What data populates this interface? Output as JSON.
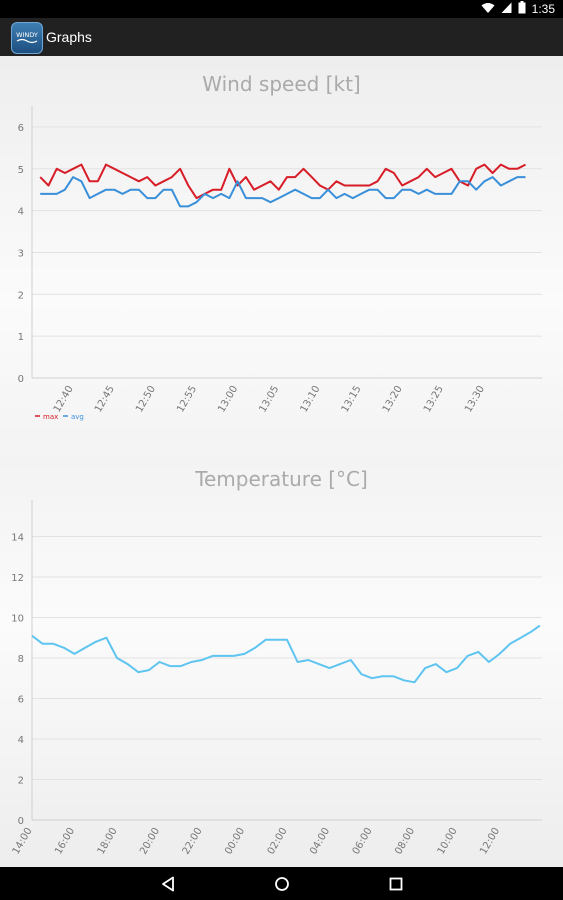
{
  "status_bar": {
    "time": "1:35",
    "icons": [
      "wifi-icon",
      "cellular-icon",
      "battery-icon"
    ]
  },
  "app_bar": {
    "icon_text": "WINDY",
    "title": "Graphs"
  },
  "navigation": {
    "icons": [
      "back-icon",
      "home-icon",
      "recents-icon"
    ]
  },
  "chart_data": [
    {
      "type": "line",
      "title": "Wind speed  [kt]",
      "xlabel": "",
      "ylabel": "",
      "ylim": [
        0,
        6.5
      ],
      "yticks": [
        0,
        1,
        2,
        3,
        4,
        5,
        6
      ],
      "grid": true,
      "legend_placement": "bottom-left",
      "x_start_min": 756,
      "x_ticks": [
        "12:40",
        "12:45",
        "12:50",
        "12:55",
        "13:00",
        "13:05",
        "13:10",
        "13:15",
        "13:20",
        "13:25",
        "13:30"
      ],
      "x": [
        756,
        757,
        758,
        759,
        760,
        761,
        762,
        763,
        764,
        765,
        766,
        767,
        768,
        769,
        770,
        771,
        772,
        773,
        774,
        775,
        776,
        777,
        778,
        779,
        780,
        781,
        782,
        783,
        784,
        785,
        786,
        787,
        788,
        789,
        790,
        791,
        792,
        793,
        794,
        795,
        796,
        797,
        798,
        799,
        800,
        801,
        802,
        803,
        804,
        805,
        806,
        807,
        808,
        809,
        810,
        811,
        812,
        813,
        814,
        815
      ],
      "series": [
        {
          "name": "max",
          "color": "#d71d28",
          "values": [
            4.8,
            4.6,
            5.0,
            4.9,
            5.0,
            5.1,
            4.7,
            4.7,
            5.1,
            5.0,
            4.9,
            4.8,
            4.7,
            4.8,
            4.6,
            4.7,
            4.8,
            5.0,
            4.6,
            4.3,
            4.4,
            4.5,
            4.5,
            5.0,
            4.6,
            4.8,
            4.5,
            4.6,
            4.7,
            4.5,
            4.8,
            4.8,
            5.0,
            4.8,
            4.6,
            4.5,
            4.7,
            4.6,
            4.6,
            4.6,
            4.6,
            4.7,
            5.0,
            4.9,
            4.6,
            4.7,
            4.8,
            5.0,
            4.8,
            4.9,
            5.0,
            4.7,
            4.6,
            5.0,
            5.1,
            4.9,
            5.1,
            5.0,
            5.0,
            5.1
          ]
        },
        {
          "name": "avg",
          "color": "#3a8fd9",
          "values": [
            4.4,
            4.4,
            4.4,
            4.5,
            4.8,
            4.7,
            4.3,
            4.4,
            4.5,
            4.5,
            4.4,
            4.5,
            4.5,
            4.3,
            4.3,
            4.5,
            4.5,
            4.1,
            4.1,
            4.2,
            4.4,
            4.3,
            4.4,
            4.3,
            4.7,
            4.3,
            4.3,
            4.3,
            4.2,
            4.3,
            4.4,
            4.5,
            4.4,
            4.3,
            4.3,
            4.5,
            4.3,
            4.4,
            4.3,
            4.4,
            4.5,
            4.5,
            4.3,
            4.3,
            4.5,
            4.5,
            4.4,
            4.5,
            4.4,
            4.4,
            4.4,
            4.7,
            4.7,
            4.5,
            4.7,
            4.8,
            4.6,
            4.7,
            4.8,
            4.8
          ]
        }
      ]
    },
    {
      "type": "line",
      "title": "Temperature  [°C]",
      "xlabel": "",
      "ylabel": "",
      "ylim": [
        0,
        15.8
      ],
      "yticks": [
        0,
        2,
        4,
        6,
        8,
        10,
        12,
        14
      ],
      "grid": true,
      "legend_placement": "none",
      "x_ticks": [
        "14:00",
        "16:00",
        "18:00",
        "20:00",
        "22:00",
        "00:00",
        "02:00",
        "04:00",
        "06:00",
        "08:00",
        "10:00",
        "12:00"
      ],
      "x": [
        0,
        0.5,
        1,
        1.5,
        2,
        2.5,
        3,
        3.5,
        4,
        4.5,
        5,
        5.5,
        6,
        6.5,
        7,
        7.5,
        8,
        8.5,
        9,
        9.5,
        10,
        10.5,
        11,
        11.5,
        12,
        12.5,
        13,
        13.5,
        14,
        14.5,
        15,
        15.5,
        16,
        16.5,
        17,
        17.5,
        18,
        18.5,
        19,
        19.5,
        20,
        20.5,
        21,
        21.5,
        22,
        22.5,
        23,
        23.5,
        23.9
      ],
      "series": [
        {
          "name": "",
          "color": "#5ec4f0",
          "values": [
            9.1,
            8.7,
            8.7,
            8.5,
            8.2,
            8.5,
            8.8,
            9.0,
            8.0,
            7.7,
            7.3,
            7.4,
            7.8,
            7.6,
            7.6,
            7.8,
            7.9,
            8.1,
            8.1,
            8.1,
            8.2,
            8.5,
            8.9,
            8.9,
            8.9,
            7.8,
            7.9,
            7.7,
            7.5,
            7.7,
            7.9,
            7.2,
            7.0,
            7.1,
            7.1,
            6.9,
            6.8,
            7.5,
            7.7,
            7.3,
            7.5,
            8.1,
            8.3,
            7.8,
            8.2,
            8.7,
            9.0,
            9.3,
            9.6
          ]
        }
      ]
    }
  ]
}
